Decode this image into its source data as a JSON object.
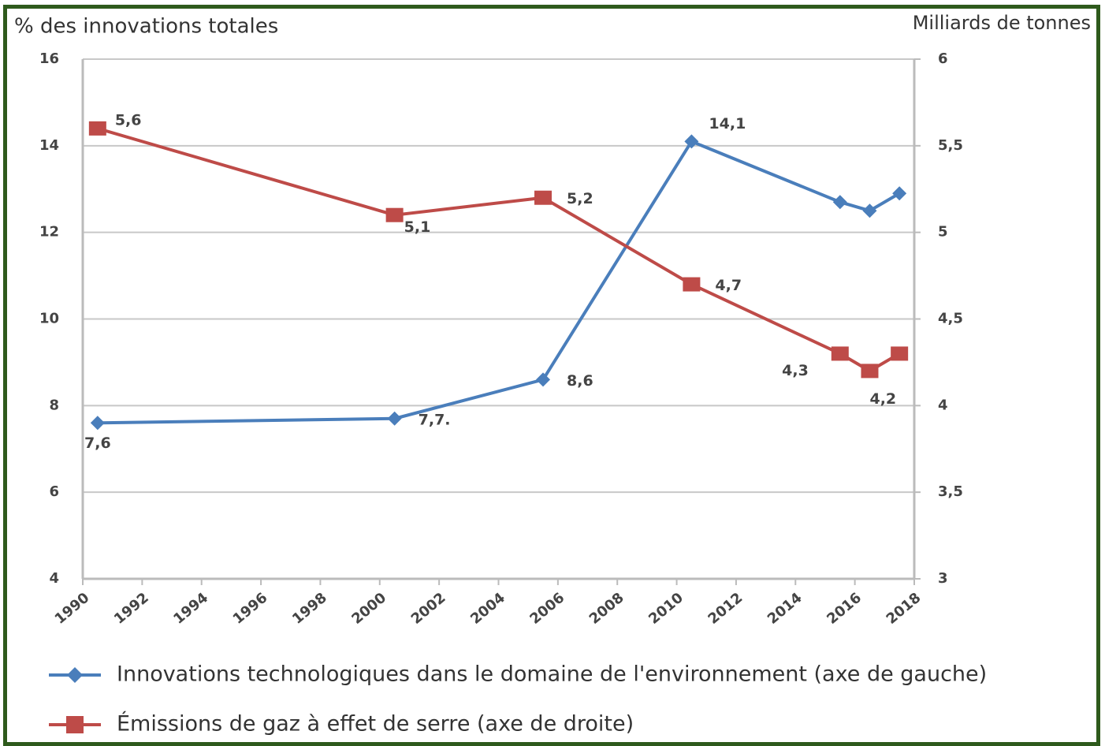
{
  "chart_data": {
    "type": "line",
    "y_label": "% des innovations totales",
    "y2_label": "Milliards de tonnes",
    "x": [
      1990.5,
      2000.5,
      2005.5,
      2010.5,
      2015.5,
      2016.5,
      2017.5
    ],
    "series": [
      {
        "name": "Innovations technologiques dans le domaine de l'environnement (axe de gauche)",
        "color": "#4a7ebb",
        "marker": "diamond",
        "values": [
          7.6,
          7.7,
          8.6,
          14.1,
          12.7,
          12.5,
          12.9
        ],
        "value_labels": [
          "7,6",
          "7,7.",
          "8,6",
          "14,1",
          null,
          null,
          null
        ]
      },
      {
        "name": "Émissions de gaz à effet de serre (axe de droite)",
        "color": "#be4b48",
        "marker": "square",
        "axis": "y2",
        "values": [
          5.6,
          5.1,
          5.2,
          4.7,
          4.3,
          4.2,
          4.3
        ],
        "value_labels": [
          "5,6",
          "5,1",
          "5,2",
          "4,7",
          "4,3",
          "4,2",
          null
        ]
      }
    ],
    "xlim": [
      1990,
      2018
    ],
    "xticks": [
      1990,
      1992,
      1994,
      1996,
      1998,
      2000,
      2002,
      2004,
      2006,
      2008,
      2010,
      2012,
      2014,
      2016,
      2018
    ],
    "ylim": [
      4,
      16
    ],
    "yticks": [
      4,
      6,
      8,
      10,
      12,
      14,
      16
    ],
    "y2lim": [
      3,
      6
    ],
    "y2ticks": [
      3,
      {
        "value": 3.5,
        "label": "3,5"
      },
      4,
      {
        "value": 4.5,
        "label": "4,5"
      },
      5,
      {
        "value": 5.5,
        "label": "5,5"
      },
      6
    ],
    "grid": true,
    "legend": "bottom"
  }
}
